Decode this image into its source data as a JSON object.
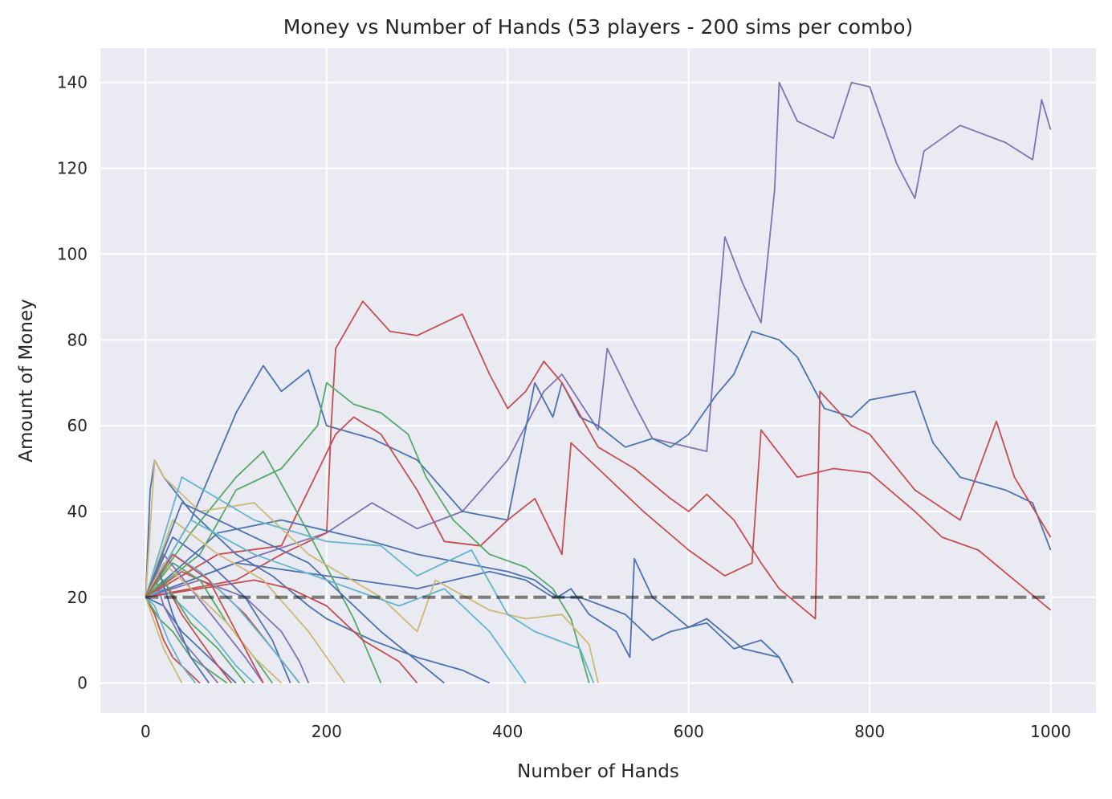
{
  "chart_data": {
    "type": "line",
    "title": "Money vs Number of Hands (53 players - 200 sims per combo)",
    "xlabel": "Number of Hands",
    "ylabel": "Amount of Money",
    "xlim": [
      -50,
      1050
    ],
    "ylim": [
      -7,
      148
    ],
    "xticks": [
      0,
      200,
      400,
      600,
      800,
      1000
    ],
    "yticks": [
      0,
      20,
      40,
      60,
      80,
      100,
      120,
      140
    ],
    "grid": true,
    "background": "#eaeaf2",
    "colors": {
      "blue": "#4c72b0",
      "green": "#55a868",
      "red": "#c44e52",
      "purple": "#8172b2",
      "yellow": "#ccb974",
      "cyan": "#64b5cd",
      "baseline": "#000000"
    },
    "reference_line": {
      "y": 20,
      "style": "dashed"
    },
    "series": [
      {
        "color": "purple",
        "x": [
          0,
          100,
          200,
          250,
          300,
          350,
          400,
          440,
          460,
          500,
          510,
          540,
          560,
          600,
          620,
          640,
          660,
          680,
          695,
          700,
          720,
          760,
          780,
          800,
          830,
          850,
          860,
          900,
          950,
          980,
          990,
          1000
        ],
        "y": [
          20,
          28,
          35,
          42,
          36,
          40,
          52,
          68,
          72,
          59,
          78,
          65,
          57,
          55,
          54,
          104,
          93,
          84,
          115,
          140,
          131,
          127,
          140,
          139,
          121,
          113,
          124,
          130,
          126,
          122,
          136,
          129
        ]
      },
      {
        "color": "blue",
        "x": [
          0,
          50,
          100,
          130,
          150,
          180,
          200,
          250,
          300,
          350,
          400,
          430,
          450,
          460,
          480,
          500,
          530,
          560,
          580,
          600,
          630,
          650,
          670,
          700,
          720,
          750,
          780,
          800,
          850,
          870,
          900,
          950,
          980,
          1000
        ],
        "y": [
          20,
          38,
          63,
          74,
          68,
          73,
          60,
          57,
          52,
          40,
          38,
          70,
          62,
          70,
          62,
          60,
          55,
          57,
          55,
          58,
          67,
          72,
          82,
          80,
          76,
          64,
          62,
          66,
          68,
          56,
          48,
          45,
          42,
          31
        ]
      },
      {
        "color": "red",
        "x": [
          0,
          100,
          150,
          200,
          205,
          210,
          240,
          270,
          300,
          350,
          380,
          400,
          420,
          440,
          460,
          500,
          540,
          580,
          600,
          620,
          650,
          680,
          700,
          740,
          745,
          780,
          800,
          850,
          900,
          940,
          960,
          1000
        ],
        "y": [
          20,
          24,
          30,
          35,
          60,
          78,
          89,
          82,
          81,
          86,
          72,
          64,
          68,
          75,
          70,
          55,
          50,
          43,
          40,
          44,
          38,
          28,
          22,
          15,
          68,
          60,
          58,
          45,
          38,
          61,
          48,
          34
        ]
      },
      {
        "color": "red",
        "x": [
          0,
          80,
          150,
          210,
          230,
          260,
          300,
          330,
          370,
          400,
          430,
          460,
          470,
          500,
          550,
          600,
          640,
          670,
          680,
          720,
          760,
          800,
          850,
          880,
          920,
          960,
          1000
        ],
        "y": [
          20,
          30,
          32,
          58,
          62,
          58,
          45,
          33,
          32,
          38,
          43,
          30,
          56,
          50,
          40,
          31,
          25,
          28,
          59,
          48,
          50,
          49,
          40,
          34,
          31,
          24,
          17
        ]
      },
      {
        "color": "blue",
        "x": [
          0,
          100,
          200,
          300,
          380,
          420,
          450,
          480,
          530,
          560,
          580,
          620,
          650,
          680,
          700,
          715
        ],
        "y": [
          20,
          28,
          25,
          22,
          26,
          24,
          20,
          20,
          16,
          10,
          12,
          14,
          8,
          10,
          6,
          0
        ]
      },
      {
        "color": "blue",
        "x": [
          0,
          80,
          150,
          250,
          300,
          350,
          400,
          430,
          455,
          470,
          490,
          520,
          535,
          540,
          560,
          600,
          620,
          660,
          700,
          715
        ],
        "y": [
          20,
          35,
          38,
          33,
          30,
          28,
          26,
          24,
          20,
          22,
          16,
          12,
          6,
          29,
          20,
          13,
          15,
          8,
          6,
          0
        ]
      },
      {
        "color": "blue",
        "x": [
          0,
          5,
          10,
          20,
          50,
          100,
          140,
          180,
          200,
          250,
          300,
          350,
          380
        ],
        "y": [
          20,
          45,
          52,
          48,
          40,
          30,
          25,
          18,
          15,
          10,
          6,
          3,
          0
        ]
      },
      {
        "color": "green",
        "x": [
          0,
          60,
          100,
          150,
          190,
          200,
          230,
          260,
          290,
          310,
          340,
          380,
          420,
          450,
          470,
          490
        ],
        "y": [
          20,
          30,
          45,
          50,
          60,
          70,
          65,
          63,
          58,
          48,
          38,
          30,
          27,
          22,
          15,
          0
        ]
      },
      {
        "color": "green",
        "x": [
          0,
          50,
          100,
          130,
          180,
          230,
          260
        ],
        "y": [
          20,
          35,
          48,
          54,
          35,
          15,
          0
        ]
      },
      {
        "color": "yellow",
        "x": [
          0,
          10,
          20,
          60,
          120,
          180,
          220,
          260,
          300,
          320,
          380,
          420,
          460,
          490,
          500
        ],
        "y": [
          20,
          52,
          48,
          40,
          42,
          30,
          25,
          20,
          12,
          24,
          17,
          15,
          16,
          9,
          0
        ]
      },
      {
        "color": "cyan",
        "x": [
          0,
          40,
          120,
          200,
          260,
          300,
          360,
          400,
          430,
          480,
          495
        ],
        "y": [
          20,
          48,
          38,
          33,
          32,
          25,
          31,
          16,
          12,
          8,
          0
        ]
      },
      {
        "color": "purple",
        "x": [
          0,
          60,
          110,
          150,
          170,
          180
        ],
        "y": [
          20,
          24,
          20,
          12,
          5,
          0
        ]
      },
      {
        "color": "red",
        "x": [
          0,
          60,
          120,
          160,
          200,
          240,
          280,
          300
        ],
        "y": [
          20,
          22,
          24,
          22,
          18,
          10,
          5,
          0
        ]
      },
      {
        "color": "red",
        "x": [
          0,
          10,
          20,
          30,
          45,
          60
        ],
        "y": [
          20,
          16,
          10,
          6,
          3,
          0
        ]
      },
      {
        "color": "blue",
        "x": [
          0,
          20,
          40,
          60,
          80,
          100
        ],
        "y": [
          20,
          18,
          12,
          8,
          4,
          0
        ]
      },
      {
        "color": "green",
        "x": [
          0,
          15,
          30,
          50,
          70,
          90
        ],
        "y": [
          20,
          15,
          12,
          6,
          3,
          0
        ]
      },
      {
        "color": "cyan",
        "x": [
          0,
          20,
          40,
          70,
          100,
          120
        ],
        "y": [
          20,
          22,
          18,
          12,
          4,
          0
        ]
      },
      {
        "color": "yellow",
        "x": [
          0,
          10,
          20,
          30,
          40
        ],
        "y": [
          20,
          14,
          8,
          4,
          0
        ]
      },
      {
        "color": "purple",
        "x": [
          0,
          10,
          20,
          40,
          60,
          80
        ],
        "y": [
          20,
          25,
          18,
          10,
          5,
          0
        ]
      },
      {
        "color": "red",
        "x": [
          0,
          40,
          80,
          110,
          140,
          170
        ],
        "y": [
          20,
          26,
          22,
          16,
          8,
          0
        ]
      },
      {
        "color": "blue",
        "x": [
          0,
          30,
          70,
          110,
          140,
          160
        ],
        "y": [
          20,
          34,
          28,
          20,
          10,
          0
        ]
      },
      {
        "color": "green",
        "x": [
          0,
          30,
          60,
          90,
          120,
          140
        ],
        "y": [
          20,
          28,
          24,
          14,
          6,
          0
        ]
      },
      {
        "color": "cyan",
        "x": [
          0,
          30,
          60,
          100,
          140,
          170
        ],
        "y": [
          20,
          30,
          26,
          18,
          8,
          0
        ]
      },
      {
        "color": "yellow",
        "x": [
          0,
          30,
          80,
          130,
          180,
          220
        ],
        "y": [
          20,
          38,
          30,
          24,
          12,
          0
        ]
      },
      {
        "color": "purple",
        "x": [
          0,
          20,
          50,
          80,
          110,
          130
        ],
        "y": [
          20,
          30,
          22,
          14,
          6,
          0
        ]
      },
      {
        "color": "red",
        "x": [
          0,
          20,
          40,
          60,
          80,
          95
        ],
        "y": [
          20,
          24,
          16,
          10,
          4,
          0
        ]
      },
      {
        "color": "blue",
        "x": [
          0,
          40,
          100,
          180,
          260,
          330
        ],
        "y": [
          20,
          42,
          36,
          28,
          12,
          0
        ]
      },
      {
        "color": "cyan",
        "x": [
          0,
          50,
          120,
          200,
          280,
          330,
          380,
          420
        ],
        "y": [
          20,
          38,
          30,
          24,
          18,
          22,
          12,
          0
        ]
      },
      {
        "color": "green",
        "x": [
          0,
          20,
          50,
          80,
          110
        ],
        "y": [
          20,
          24,
          14,
          8,
          0
        ]
      },
      {
        "color": "blue",
        "x": [
          0,
          15,
          30,
          50,
          70
        ],
        "y": [
          20,
          26,
          16,
          6,
          0
        ]
      },
      {
        "color": "yellow",
        "x": [
          0,
          20,
          50,
          90,
          120,
          150
        ],
        "y": [
          20,
          28,
          22,
          14,
          6,
          0
        ]
      },
      {
        "color": "cyan",
        "x": [
          0,
          10,
          25,
          40,
          55
        ],
        "y": [
          20,
          18,
          10,
          4,
          0
        ]
      },
      {
        "color": "red",
        "x": [
          0,
          30,
          70,
          100,
          130
        ],
        "y": [
          20,
          30,
          24,
          12,
          0
        ]
      }
    ]
  }
}
